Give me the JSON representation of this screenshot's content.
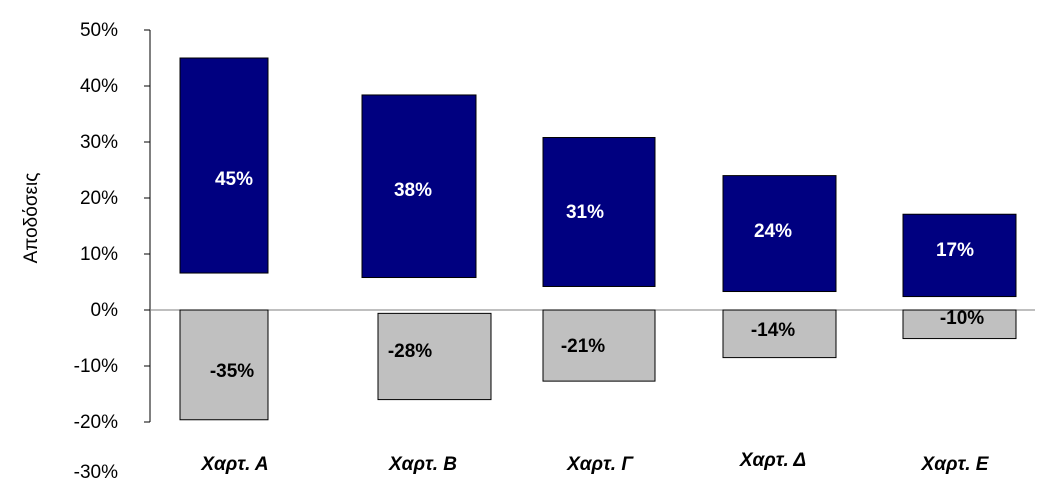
{
  "chart_data": {
    "type": "bar",
    "ylabel": "Αποδόσεις",
    "ylim": [
      -30,
      50
    ],
    "yticks": [
      "50%",
      "40%",
      "30%",
      "20%",
      "10%",
      "0%",
      "-10%",
      "-20%",
      "-30%"
    ],
    "categories": [
      "Χαρτ. Α",
      "Χαρτ. Β",
      "Χαρτ. Γ",
      "Χαρτ. Δ",
      "Χαρτ. Ε"
    ],
    "series": [
      {
        "values": [
          45,
          38,
          31,
          24,
          17
        ],
        "labels": [
          "45%",
          "38%",
          "31%",
          "24%",
          "17%"
        ],
        "bar_range": [
          [
            6.6,
            45.0
          ],
          [
            5.8,
            38.4
          ],
          [
            4.2,
            30.8
          ],
          [
            3.3,
            24.0
          ],
          [
            2.4,
            17.1
          ]
        ],
        "color": "#000080",
        "label_color": "#ffffff"
      },
      {
        "values": [
          -35,
          -28,
          -21,
          -14,
          -10
        ],
        "labels": [
          "-35%",
          "-28%",
          "-21%",
          "-14%",
          "-10%"
        ],
        "bar_range": [
          [
            -19.6,
            0.0
          ],
          [
            -16.0,
            -0.6
          ],
          [
            -12.7,
            0.0
          ],
          [
            -8.5,
            0.0
          ],
          [
            -5.1,
            0.0
          ]
        ],
        "color": "#c0c0c0",
        "label_color": "#000000"
      }
    ],
    "grid": false,
    "legend": "none"
  }
}
